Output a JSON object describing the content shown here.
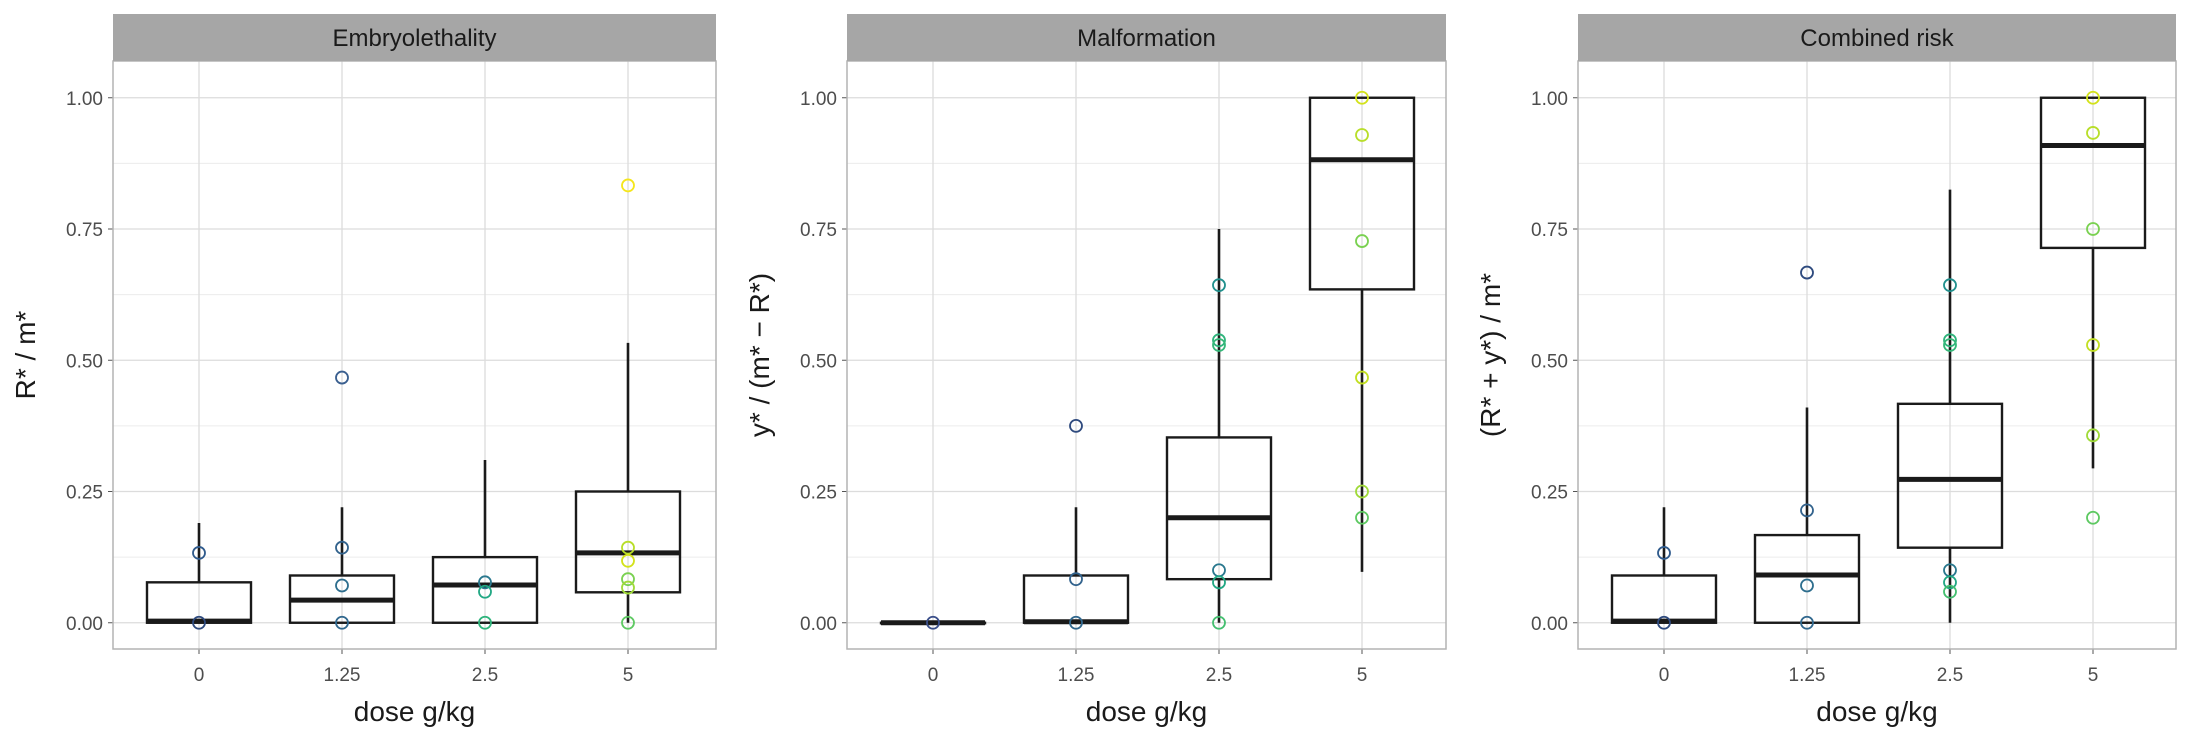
{
  "chart_data": {
    "type": "boxplot",
    "facets": [
      {
        "title": "Embryolethality",
        "ylabel": "R* / m*",
        "xlabel": "dose g/kg",
        "categories": [
          "0",
          "1.25",
          "2.5",
          "5"
        ],
        "ylim": [
          -0.05,
          1.07
        ],
        "yticks": [
          "0.00",
          "0.25",
          "0.50",
          "0.75",
          "1.00"
        ],
        "boxes": [
          {
            "dose": "0",
            "lower_whisker": 0.0,
            "q1": 0.0,
            "median": 0.003,
            "q3": 0.077,
            "upper_whisker": 0.19
          },
          {
            "dose": "1.25",
            "lower_whisker": 0.0,
            "q1": 0.0,
            "median": 0.043,
            "q3": 0.09,
            "upper_whisker": 0.22
          },
          {
            "dose": "2.5",
            "lower_whisker": 0.0,
            "q1": 0.0,
            "median": 0.072,
            "q3": 0.125,
            "upper_whisker": 0.31
          },
          {
            "dose": "5",
            "lower_whisker": 0.0,
            "q1": 0.058,
            "median": 0.133,
            "q3": 0.25,
            "upper_whisker": 0.533
          }
        ],
        "points": [
          {
            "dose": "0",
            "y": 0.133,
            "color": "#2f5a8c"
          },
          {
            "dose": "0",
            "y": 0.0,
            "color": "#2e4a7e"
          },
          {
            "dose": "1.25",
            "y": 0.467,
            "color": "#3a5f8f"
          },
          {
            "dose": "1.25",
            "y": 0.143,
            "color": "#33638d"
          },
          {
            "dose": "1.25",
            "y": 0.071,
            "color": "#2e6e8e"
          },
          {
            "dose": "1.25",
            "y": 0.0,
            "color": "#31688e"
          },
          {
            "dose": "2.5",
            "y": 0.077,
            "color": "#2a788e"
          },
          {
            "dose": "2.5",
            "y": 0.059,
            "color": "#22a884"
          },
          {
            "dose": "2.5",
            "y": 0.0,
            "color": "#2fb47c"
          },
          {
            "dose": "5",
            "y": 0.833,
            "color": "#f5e61b"
          },
          {
            "dose": "5",
            "y": 0.143,
            "color": "#b8de29"
          },
          {
            "dose": "5",
            "y": 0.118,
            "color": "#d3e21b"
          },
          {
            "dose": "5",
            "y": 0.083,
            "color": "#7ad151"
          },
          {
            "dose": "5",
            "y": 0.067,
            "color": "#a0da39"
          },
          {
            "dose": "5",
            "y": 0.0,
            "color": "#5ec962"
          }
        ]
      },
      {
        "title": "Malformation",
        "ylabel": "y* / (m* − R*)",
        "xlabel": "dose g/kg",
        "categories": [
          "0",
          "1.25",
          "2.5",
          "5"
        ],
        "ylim": [
          -0.05,
          1.07
        ],
        "yticks": [
          "0.00",
          "0.25",
          "0.50",
          "0.75",
          "1.00"
        ],
        "boxes": [
          {
            "dose": "0",
            "lower_whisker": 0.0,
            "q1": 0.0,
            "median": 0.0,
            "q3": 0.0,
            "upper_whisker": 0.0
          },
          {
            "dose": "1.25",
            "lower_whisker": 0.0,
            "q1": 0.0,
            "median": 0.002,
            "q3": 0.09,
            "upper_whisker": 0.22
          },
          {
            "dose": "2.5",
            "lower_whisker": 0.0,
            "q1": 0.083,
            "median": 0.2,
            "q3": 0.353,
            "upper_whisker": 0.75
          },
          {
            "dose": "5",
            "lower_whisker": 0.097,
            "q1": 0.635,
            "median": 0.882,
            "q3": 1.0,
            "upper_whisker": 1.0
          }
        ],
        "points": [
          {
            "dose": "0",
            "y": 0.0,
            "color": "#3b4f8a"
          },
          {
            "dose": "1.25",
            "y": 0.375,
            "color": "#2e4a7e"
          },
          {
            "dose": "1.25",
            "y": 0.083,
            "color": "#33638d"
          },
          {
            "dose": "1.25",
            "y": 0.0,
            "color": "#31688e"
          },
          {
            "dose": "2.5",
            "y": 0.643,
            "color": "#21908d"
          },
          {
            "dose": "2.5",
            "y": 0.538,
            "color": "#2fb47c"
          },
          {
            "dose": "2.5",
            "y": 0.529,
            "color": "#35b779"
          },
          {
            "dose": "2.5",
            "y": 0.1,
            "color": "#2a788e"
          },
          {
            "dose": "2.5",
            "y": 0.077,
            "color": "#22a884"
          },
          {
            "dose": "2.5",
            "y": 0.0,
            "color": "#44bf70"
          },
          {
            "dose": "5",
            "y": 1.0,
            "color": "#d3e21b"
          },
          {
            "dose": "5",
            "y": 0.929,
            "color": "#b8de29"
          },
          {
            "dose": "5",
            "y": 0.727,
            "color": "#7ad151"
          },
          {
            "dose": "5",
            "y": 0.467,
            "color": "#c2df23"
          },
          {
            "dose": "5",
            "y": 0.25,
            "color": "#a0da39"
          },
          {
            "dose": "5",
            "y": 0.2,
            "color": "#5ec962"
          }
        ]
      },
      {
        "title": "Combined risk",
        "ylabel": "(R* + y*) / m*",
        "xlabel": "dose g/kg",
        "categories": [
          "0",
          "1.25",
          "2.5",
          "5"
        ],
        "ylim": [
          -0.05,
          1.07
        ],
        "yticks": [
          "0.00",
          "0.25",
          "0.50",
          "0.75",
          "1.00"
        ],
        "boxes": [
          {
            "dose": "0",
            "lower_whisker": 0.0,
            "q1": 0.0,
            "median": 0.003,
            "q3": 0.09,
            "upper_whisker": 0.22
          },
          {
            "dose": "1.25",
            "lower_whisker": 0.0,
            "q1": 0.0,
            "median": 0.091,
            "q3": 0.167,
            "upper_whisker": 0.41
          },
          {
            "dose": "2.5",
            "lower_whisker": 0.0,
            "q1": 0.143,
            "median": 0.273,
            "q3": 0.417,
            "upper_whisker": 0.825
          },
          {
            "dose": "5",
            "lower_whisker": 0.294,
            "q1": 0.714,
            "median": 0.909,
            "q3": 1.0,
            "upper_whisker": 1.0
          }
        ],
        "points": [
          {
            "dose": "0",
            "y": 0.133,
            "color": "#2f5a8c"
          },
          {
            "dose": "0",
            "y": 0.0,
            "color": "#2e4a7e"
          },
          {
            "dose": "1.25",
            "y": 0.667,
            "color": "#2e4a7e"
          },
          {
            "dose": "1.25",
            "y": 0.214,
            "color": "#33638d"
          },
          {
            "dose": "1.25",
            "y": 0.071,
            "color": "#2e6e8e"
          },
          {
            "dose": "1.25",
            "y": 0.0,
            "color": "#31688e"
          },
          {
            "dose": "2.5",
            "y": 0.643,
            "color": "#21908d"
          },
          {
            "dose": "2.5",
            "y": 0.538,
            "color": "#2fb47c"
          },
          {
            "dose": "2.5",
            "y": 0.529,
            "color": "#35b779"
          },
          {
            "dose": "2.5",
            "y": 0.1,
            "color": "#2a788e"
          },
          {
            "dose": "2.5",
            "y": 0.077,
            "color": "#22a884"
          },
          {
            "dose": "2.5",
            "y": 0.059,
            "color": "#44bf70"
          },
          {
            "dose": "5",
            "y": 1.0,
            "color": "#d3e21b"
          },
          {
            "dose": "5",
            "y": 0.933,
            "color": "#b8de29"
          },
          {
            "dose": "5",
            "y": 0.75,
            "color": "#7ad151"
          },
          {
            "dose": "5",
            "y": 0.529,
            "color": "#c2df23"
          },
          {
            "dose": "5",
            "y": 0.357,
            "color": "#a0da39"
          },
          {
            "dose": "5",
            "y": 0.2,
            "color": "#5ec962"
          }
        ]
      }
    ]
  }
}
